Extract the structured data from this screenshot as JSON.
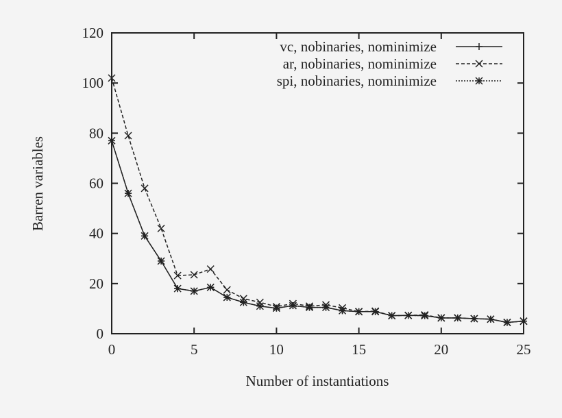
{
  "chart_data": {
    "type": "line",
    "xlabel": "Number of instantiations",
    "ylabel": "Barren variables",
    "xlim": [
      0,
      25
    ],
    "ylim": [
      0,
      120
    ],
    "xticks": [
      0,
      5,
      10,
      15,
      20,
      25
    ],
    "yticks": [
      0,
      20,
      40,
      60,
      80,
      100,
      120
    ],
    "grid": false,
    "legend_position": "top-right",
    "x": [
      0,
      1,
      2,
      3,
      4,
      5,
      6,
      7,
      8,
      9,
      10,
      11,
      12,
      13,
      14,
      15,
      16,
      17,
      18,
      19,
      20,
      21,
      22,
      23,
      24,
      25
    ],
    "series": [
      {
        "name": "vc, nobinaries, nominimize",
        "style": "solid",
        "marker": "plus",
        "values": [
          77,
          56,
          39,
          29,
          18,
          17,
          18.5,
          14.5,
          12.5,
          11,
          10.2,
          11.2,
          10.5,
          10.5,
          9.2,
          8.8,
          8.8,
          7.2,
          7.3,
          7.2,
          6.3,
          6.3,
          6,
          5.8,
          4.5,
          5
        ]
      },
      {
        "name": "ar, nobinaries, nominimize",
        "style": "dashed",
        "marker": "cross",
        "values": [
          102,
          79,
          58,
          42,
          23.2,
          23.5,
          25.8,
          17.5,
          14,
          12.5,
          10.8,
          12,
          11,
          11.5,
          10.3,
          8.8,
          9,
          7.2,
          7.3,
          7.5,
          6.3,
          6.3,
          6,
          5.8,
          4.5,
          5
        ]
      },
      {
        "name": "spi, nobinaries, nominimize",
        "style": "dotted",
        "marker": "star",
        "values": [
          77,
          56,
          39,
          29,
          18,
          17,
          18.5,
          14.5,
          12.5,
          11,
          10.2,
          11.2,
          10.5,
          10.5,
          9.2,
          8.8,
          8.8,
          7.2,
          7.3,
          7.2,
          6.3,
          6.3,
          6,
          5.8,
          4.5,
          5
        ]
      }
    ]
  }
}
